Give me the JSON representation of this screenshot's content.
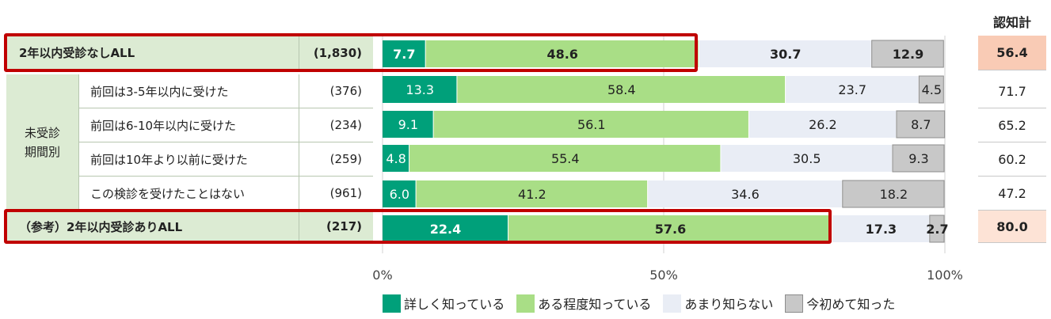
{
  "total_header": "認知計",
  "group_label": "未受診\n期間別",
  "rows": [
    {
      "label": "2年以内受診なしALL",
      "n": "(1,830)",
      "total": "56.4",
      "bold": true,
      "highlight": true,
      "total_bg": "#f9cbb5"
    },
    {
      "label": "前回は3-5年以内に受けた",
      "n": "(376)",
      "total": "71.7",
      "bold": false,
      "highlight": false,
      "total_bg": "#ffffff"
    },
    {
      "label": "前回は6-10年以内に受けた",
      "n": "(234)",
      "total": "65.2",
      "bold": false,
      "highlight": false,
      "total_bg": "#ffffff"
    },
    {
      "label": "前回は10年より以前に受けた",
      "n": "(259)",
      "total": "60.2",
      "bold": false,
      "highlight": false,
      "total_bg": "#ffffff"
    },
    {
      "label": "この検診を受けたことはない",
      "n": "(961)",
      "total": "47.2",
      "bold": false,
      "highlight": false,
      "total_bg": "#ffffff"
    },
    {
      "label": "（参考）2年以内受診ありALL",
      "n": "(217)",
      "total": "80.0",
      "bold": true,
      "highlight": true,
      "total_bg": "#fde3d6"
    }
  ],
  "chart_data": {
    "type": "bar",
    "orientation": "horizontal-stacked-100",
    "categories": [
      "2年以内受診なしALL",
      "前回は3-5年以内に受けた",
      "前回は6-10年以内に受けた",
      "前回は10年より以前に受けた",
      "この検診を受けたことはない",
      "（参考）2年以内受診ありALL"
    ],
    "series": [
      {
        "name": "詳しく知っている",
        "color": "#00a07a",
        "values": [
          7.7,
          13.3,
          9.1,
          4.8,
          6.0,
          22.4
        ]
      },
      {
        "name": "ある程度知っている",
        "color": "#a9de86",
        "values": [
          48.6,
          58.4,
          56.1,
          55.4,
          41.2,
          57.6
        ]
      },
      {
        "name": "あまり知らない",
        "color": "#e9edf5",
        "values": [
          30.7,
          23.7,
          26.2,
          30.5,
          34.6,
          17.3
        ]
      },
      {
        "name": "今初めて知った",
        "color": "#c8c8c8",
        "values": [
          12.9,
          4.5,
          8.7,
          9.3,
          18.2,
          2.7
        ]
      }
    ],
    "xlim": [
      0,
      100
    ],
    "x_ticks": [
      "0%",
      "50%",
      "100%"
    ],
    "legend_position": "bottom",
    "grid": true
  }
}
